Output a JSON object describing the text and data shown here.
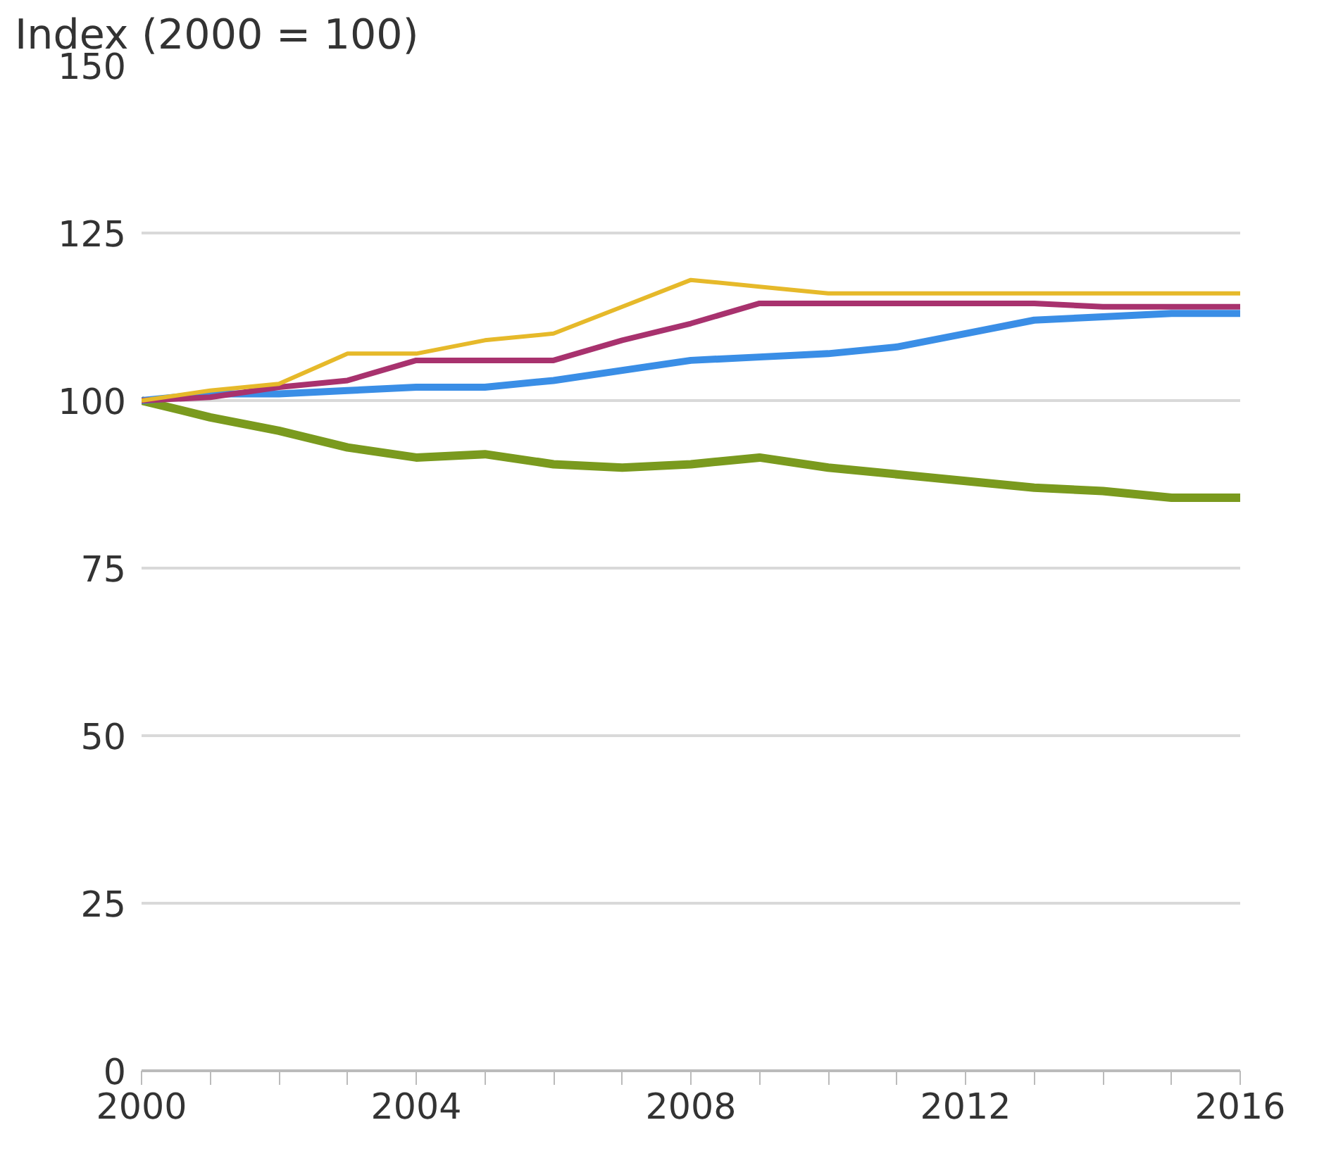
{
  "chart_data": {
    "type": "line",
    "ylabel": "Index (2000 = 100)",
    "x": [
      2000,
      2001,
      2002,
      2003,
      2004,
      2005,
      2006,
      2007,
      2008,
      2009,
      2010,
      2011,
      2012,
      2013,
      2014,
      2015,
      2016
    ],
    "series": [
      {
        "color": "#7a9a1e",
        "values": [
          100,
          97.5,
          95.5,
          93,
          91.5,
          92,
          90.5,
          90,
          90.5,
          91.5,
          90,
          89,
          88,
          87,
          86.5,
          85.5,
          85.5
        ]
      },
      {
        "color": "#3a8ee6",
        "values": [
          100,
          101,
          101,
          101.5,
          102,
          102,
          103,
          104.5,
          106,
          106.5,
          107,
          108,
          110,
          112,
          112.5,
          113,
          113
        ]
      },
      {
        "color": "#a8326e",
        "values": [
          100,
          100.5,
          102,
          103,
          106,
          106,
          106,
          109,
          111.5,
          114.5,
          114.5,
          114.5,
          114.5,
          114.5,
          114,
          114,
          114
        ]
      },
      {
        "color": "#e6b92a",
        "values": [
          100,
          101.5,
          102.5,
          107,
          107,
          109,
          110,
          114,
          118,
          117,
          116,
          116,
          116,
          116,
          116,
          116,
          116
        ]
      }
    ],
    "xlim": [
      2000,
      2016
    ],
    "xticks": [
      2000,
      {
        "value": 2001,
        "label": null
      },
      {
        "value": 2002,
        "label": null
      },
      {
        "value": 2003,
        "label": null
      },
      2004,
      {
        "value": 2005,
        "label": null
      },
      {
        "value": 2006,
        "label": null
      },
      {
        "value": 2007,
        "label": null
      },
      2008,
      {
        "value": 2009,
        "label": null
      },
      {
        "value": 2010,
        "label": null
      },
      {
        "value": 2011,
        "label": null
      },
      2012,
      {
        "value": 2013,
        "label": null
      },
      {
        "value": 2014,
        "label": null
      },
      {
        "value": 2015,
        "label": null
      },
      2016
    ],
    "ylim": [
      0,
      150
    ],
    "yticks": [
      0,
      25,
      50,
      75,
      100,
      125,
      150
    ],
    "grid": "y",
    "marker": "none",
    "line_style": "solid"
  }
}
